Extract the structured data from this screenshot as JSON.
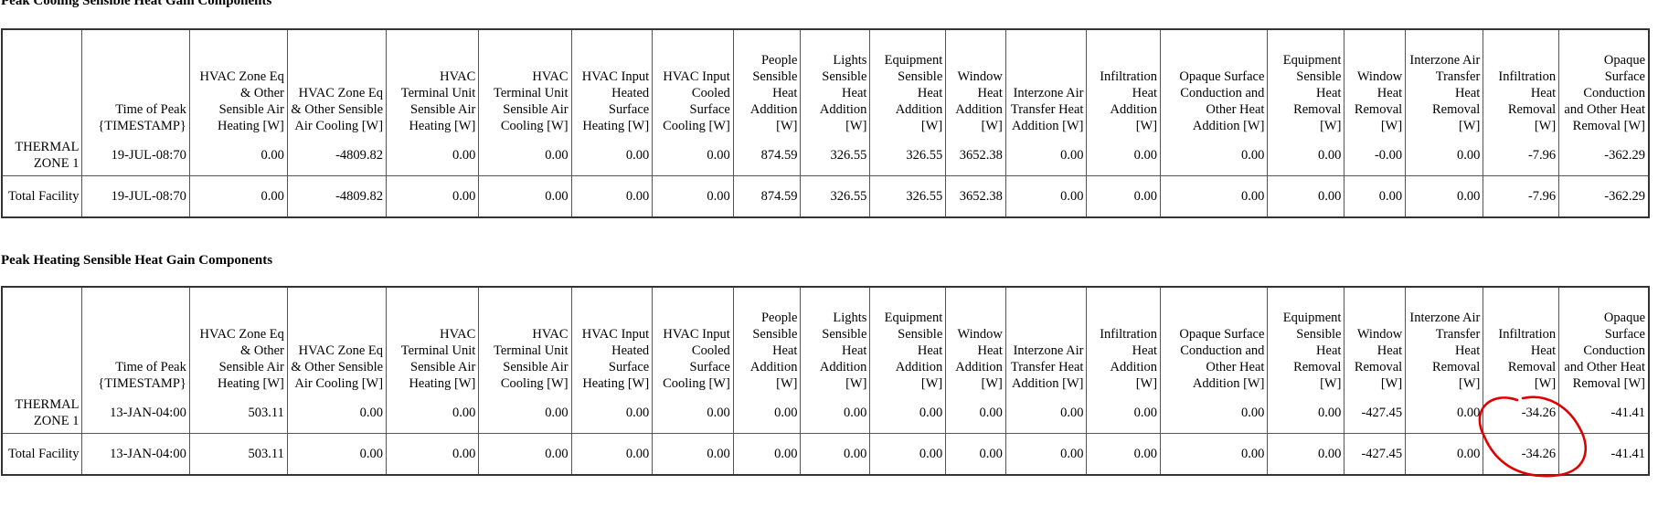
{
  "sections": [
    {
      "title": "Peak Cooling Sensible Heat Gain Components",
      "headers": [
        "",
        "Time of Peak {TIMESTAMP}",
        "HVAC Zone Eq & Other Sensible Air Heating [W]",
        "HVAC Zone Eq & Other Sensible Air Cooling [W]",
        "HVAC Terminal Unit Sensible Air Heating [W]",
        "HVAC Terminal Unit Sensible Air Cooling [W]",
        "HVAC Input Heated Surface Heating [W]",
        "HVAC Input Cooled Surface Cooling [W]",
        "People Sensible Heat Addition [W]",
        "Lights Sensible Heat Addition [W]",
        "Equipment Sensible Heat Addition [W]",
        "Window Heat Addition [W]",
        "Interzone Air Transfer Heat Addition [W]",
        "Infiltration Heat Addition [W]",
        "Opaque Surface Conduction and Other Heat Addition [W]",
        "Equipment Sensible Heat Removal [W]",
        "Window Heat Removal [W]",
        "Interzone Air Transfer Heat Removal [W]",
        "Infiltration Heat Removal [W]",
        "Opaque Surface Conduction and Other Heat Removal [W]"
      ],
      "rows": [
        [
          "THERMAL ZONE 1",
          "19-JUL-08:70",
          "0.00",
          "-4809.82",
          "0.00",
          "0.00",
          "0.00",
          "0.00",
          "874.59",
          "326.55",
          "326.55",
          "3652.38",
          "0.00",
          "0.00",
          "0.00",
          "0.00",
          "-0.00",
          "0.00",
          "-7.96",
          "-362.29"
        ],
        [
          "Total Facility",
          "19-JUL-08:70",
          "0.00",
          "-4809.82",
          "0.00",
          "0.00",
          "0.00",
          "0.00",
          "874.59",
          "326.55",
          "326.55",
          "3652.38",
          "0.00",
          "0.00",
          "0.00",
          "0.00",
          "0.00",
          "0.00",
          "-7.96",
          "-362.29"
        ]
      ]
    },
    {
      "title": "Peak Heating Sensible Heat Gain Components",
      "headers": [
        "",
        "Time of Peak {TIMESTAMP}",
        "HVAC Zone Eq & Other Sensible Air Heating [W]",
        "HVAC Zone Eq & Other Sensible Air Cooling [W]",
        "HVAC Terminal Unit Sensible Air Heating [W]",
        "HVAC Terminal Unit Sensible Air Cooling [W]",
        "HVAC Input Heated Surface Heating [W]",
        "HVAC Input Cooled Surface Cooling [W]",
        "People Sensible Heat Addition [W]",
        "Lights Sensible Heat Addition [W]",
        "Equipment Sensible Heat Addition [W]",
        "Window Heat Addition [W]",
        "Interzone Air Transfer Heat Addition [W]",
        "Infiltration Heat Addition [W]",
        "Opaque Surface Conduction and Other Heat Addition [W]",
        "Equipment Sensible Heat Removal [W]",
        "Window Heat Removal [W]",
        "Interzone Air Transfer Heat Removal [W]",
        "Infiltration Heat Removal [W]",
        "Opaque Surface Conduction and Other Heat Removal [W]"
      ],
      "rows": [
        [
          "THERMAL ZONE 1",
          "13-JAN-04:00",
          "503.11",
          "0.00",
          "0.00",
          "0.00",
          "0.00",
          "0.00",
          "0.00",
          "0.00",
          "0.00",
          "0.00",
          "0.00",
          "0.00",
          "0.00",
          "0.00",
          "-427.45",
          "0.00",
          "-34.26",
          "-41.41"
        ],
        [
          "Total Facility",
          "13-JAN-04:00",
          "503.11",
          "0.00",
          "0.00",
          "0.00",
          "0.00",
          "0.00",
          "0.00",
          "0.00",
          "0.00",
          "0.00",
          "0.00",
          "0.00",
          "0.00",
          "0.00",
          "-427.45",
          "0.00",
          "-34.26",
          "-41.41"
        ]
      ]
    }
  ],
  "annotation": {
    "shape": "hand-drawn-ellipse",
    "color": "#e00000",
    "highlights": "Infiltration Heat Removal values in Peak Heating table"
  }
}
